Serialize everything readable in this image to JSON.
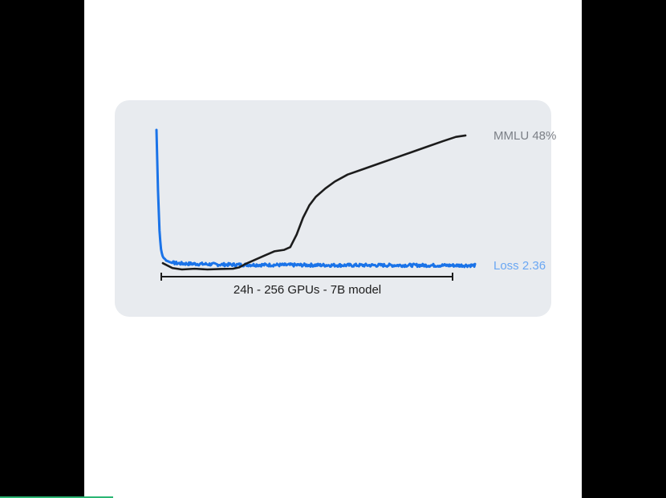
{
  "colors": {
    "loss_line": "#1a73e8",
    "loss_label": "#6aa7f3",
    "mmlu_line": "#1c1c1c",
    "mmlu_label": "#7b7f86",
    "annotation": "#1c1c1c",
    "card_bg": "#e8ebef",
    "progress": "#2bb673"
  },
  "video_progress": 0.17,
  "chart_data": {
    "type": "line",
    "title": "",
    "xlabel": "",
    "ylabel": "",
    "annotation": "24h - 256 GPUs - 7B model",
    "x_range": [
      0,
      1
    ],
    "y_range": [
      0,
      1
    ],
    "grid": false,
    "legend": "inline-right",
    "series": [
      {
        "name": "Loss 2.36",
        "color": "#1a73e8",
        "noisy": true,
        "x": [
          0.0,
          0.005,
          0.01,
          0.015,
          0.02,
          0.03,
          0.045,
          0.06,
          0.08,
          0.12,
          0.2,
          0.3,
          0.4,
          0.5,
          0.6,
          0.7,
          0.8,
          0.9,
          1.0
        ],
        "y": [
          1.0,
          0.55,
          0.25,
          0.13,
          0.09,
          0.065,
          0.05,
          0.045,
          0.042,
          0.04,
          0.035,
          0.033,
          0.032,
          0.031,
          0.03,
          0.03,
          0.03,
          0.029,
          0.029
        ]
      },
      {
        "name": "MMLU 48%",
        "color": "#1c1c1c",
        "noisy": false,
        "x": [
          0.02,
          0.05,
          0.08,
          0.12,
          0.16,
          0.2,
          0.24,
          0.26,
          0.28,
          0.31,
          0.34,
          0.37,
          0.4,
          0.42,
          0.44,
          0.46,
          0.48,
          0.5,
          0.53,
          0.56,
          0.6,
          0.65,
          0.7,
          0.75,
          0.8,
          0.85,
          0.9,
          0.94,
          0.97
        ],
        "y": [
          0.045,
          0.01,
          0.0,
          0.005,
          0.0,
          0.003,
          0.005,
          0.015,
          0.04,
          0.07,
          0.1,
          0.13,
          0.14,
          0.16,
          0.25,
          0.37,
          0.46,
          0.52,
          0.58,
          0.63,
          0.68,
          0.72,
          0.76,
          0.8,
          0.84,
          0.88,
          0.92,
          0.95,
          0.96
        ]
      }
    ]
  }
}
